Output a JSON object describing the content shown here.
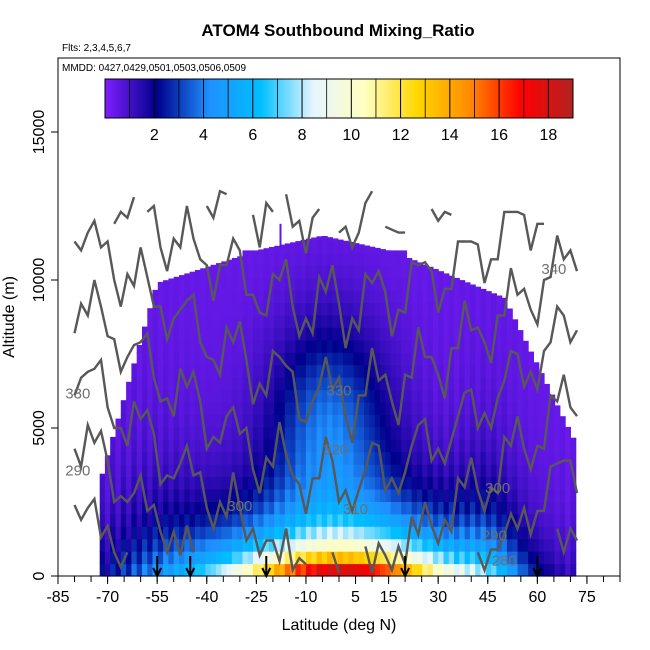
{
  "chart_data": {
    "type": "heatmap",
    "title": "ATOM4 Southbound Mixing_Ratio",
    "subtitle_flights": "Flts: 2,3,4,5,6,7",
    "subtitle_dates": "MMDD: 0427,0429,0501,0503,0506,0509",
    "xlabel": "Latitude (deg N)",
    "ylabel": "Altitude (m)",
    "xlim": [
      -85,
      85
    ],
    "ylim": [
      0,
      17500
    ],
    "x_ticks": [
      -85,
      -70,
      -55,
      -40,
      -25,
      -10,
      5,
      15,
      30,
      45,
      60,
      75
    ],
    "x_minor_step": 5,
    "y_ticks": [
      0,
      5000,
      10000,
      15000
    ],
    "colorbar": {
      "min": 0,
      "max": 19,
      "ticks": [
        2,
        4,
        6,
        8,
        10,
        12,
        14,
        16,
        18
      ],
      "colors": [
        "#7f1fff",
        "#00008b",
        "#1e90ff",
        "#00bfff",
        "#e6f5ff",
        "#ffffc0",
        "#ffd700",
        "#ff8c00",
        "#ff0000",
        "#b22222"
      ]
    },
    "contour_labels": [
      {
        "text": "340",
        "lat": 65,
        "alt": 10200
      },
      {
        "text": "330",
        "lat": 0,
        "alt": 6100
      },
      {
        "text": "320",
        "lat": -1,
        "alt": 4100
      },
      {
        "text": "310",
        "lat": 5,
        "alt": 2100
      },
      {
        "text": "300",
        "lat": -30,
        "alt": 2200
      },
      {
        "text": "300",
        "lat": 48,
        "alt": 2800
      },
      {
        "text": "290",
        "lat": 47,
        "alt": 1200
      },
      {
        "text": "280",
        "lat": 50,
        "alt": 350
      },
      {
        "text": "330",
        "lat": -79,
        "alt": 6000
      },
      {
        "text": "290",
        "lat": -79,
        "alt": 3400
      }
    ],
    "profile_markers_lat": [
      -55,
      -45,
      -22,
      20,
      60
    ]
  }
}
